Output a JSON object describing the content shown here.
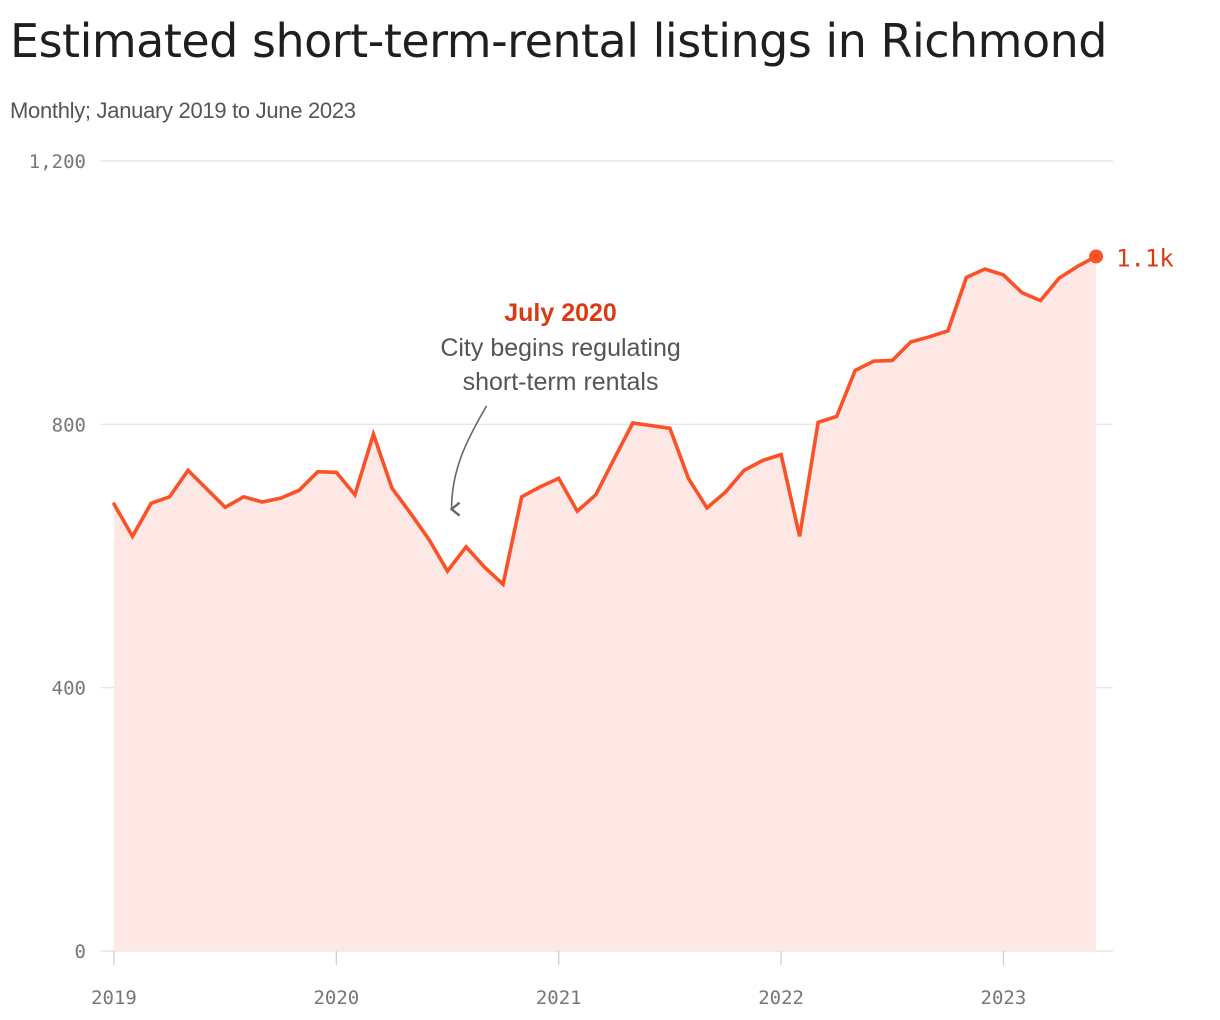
{
  "title": "Estimated short-term-rental listings in Richmond",
  "subtitle": "Monthly; January 2019 to June 2023",
  "colors": {
    "line": "#fa5126",
    "area": "#fde8e6",
    "grid": "#e2e2e2",
    "annotation": "#d93b13",
    "end_label": "#d93b13"
  },
  "chart_data": {
    "type": "area",
    "x_start": "2019-01",
    "x_end": "2023-06",
    "x_ticks": [
      "2019",
      "2020",
      "2021",
      "2022",
      "2023"
    ],
    "y_ticks": [
      "0",
      "400",
      "800",
      "1,200"
    ],
    "ylim": [
      0,
      1200
    ],
    "grid": true,
    "series": [
      {
        "values": [
          679,
          630,
          680,
          690,
          730,
          702,
          674,
          690,
          682,
          688,
          700,
          728,
          727,
          693,
          785,
          703,
          665,
          625,
          577,
          614,
          583,
          557,
          690,
          705,
          718,
          668,
          693,
          748,
          802,
          798,
          794,
          718,
          673,
          697,
          730,
          745,
          754,
          630,
          803,
          812,
          882,
          896,
          897,
          925,
          933,
          942,
          1023,
          1036,
          1027,
          1000,
          988,
          1022,
          1040,
          1055
        ]
      }
    ],
    "end_label": "1.1k",
    "annotation": {
      "date": "2020-07",
      "title": "July 2020",
      "lines": [
        "City begins regulating",
        "short-term rentals"
      ]
    }
  }
}
